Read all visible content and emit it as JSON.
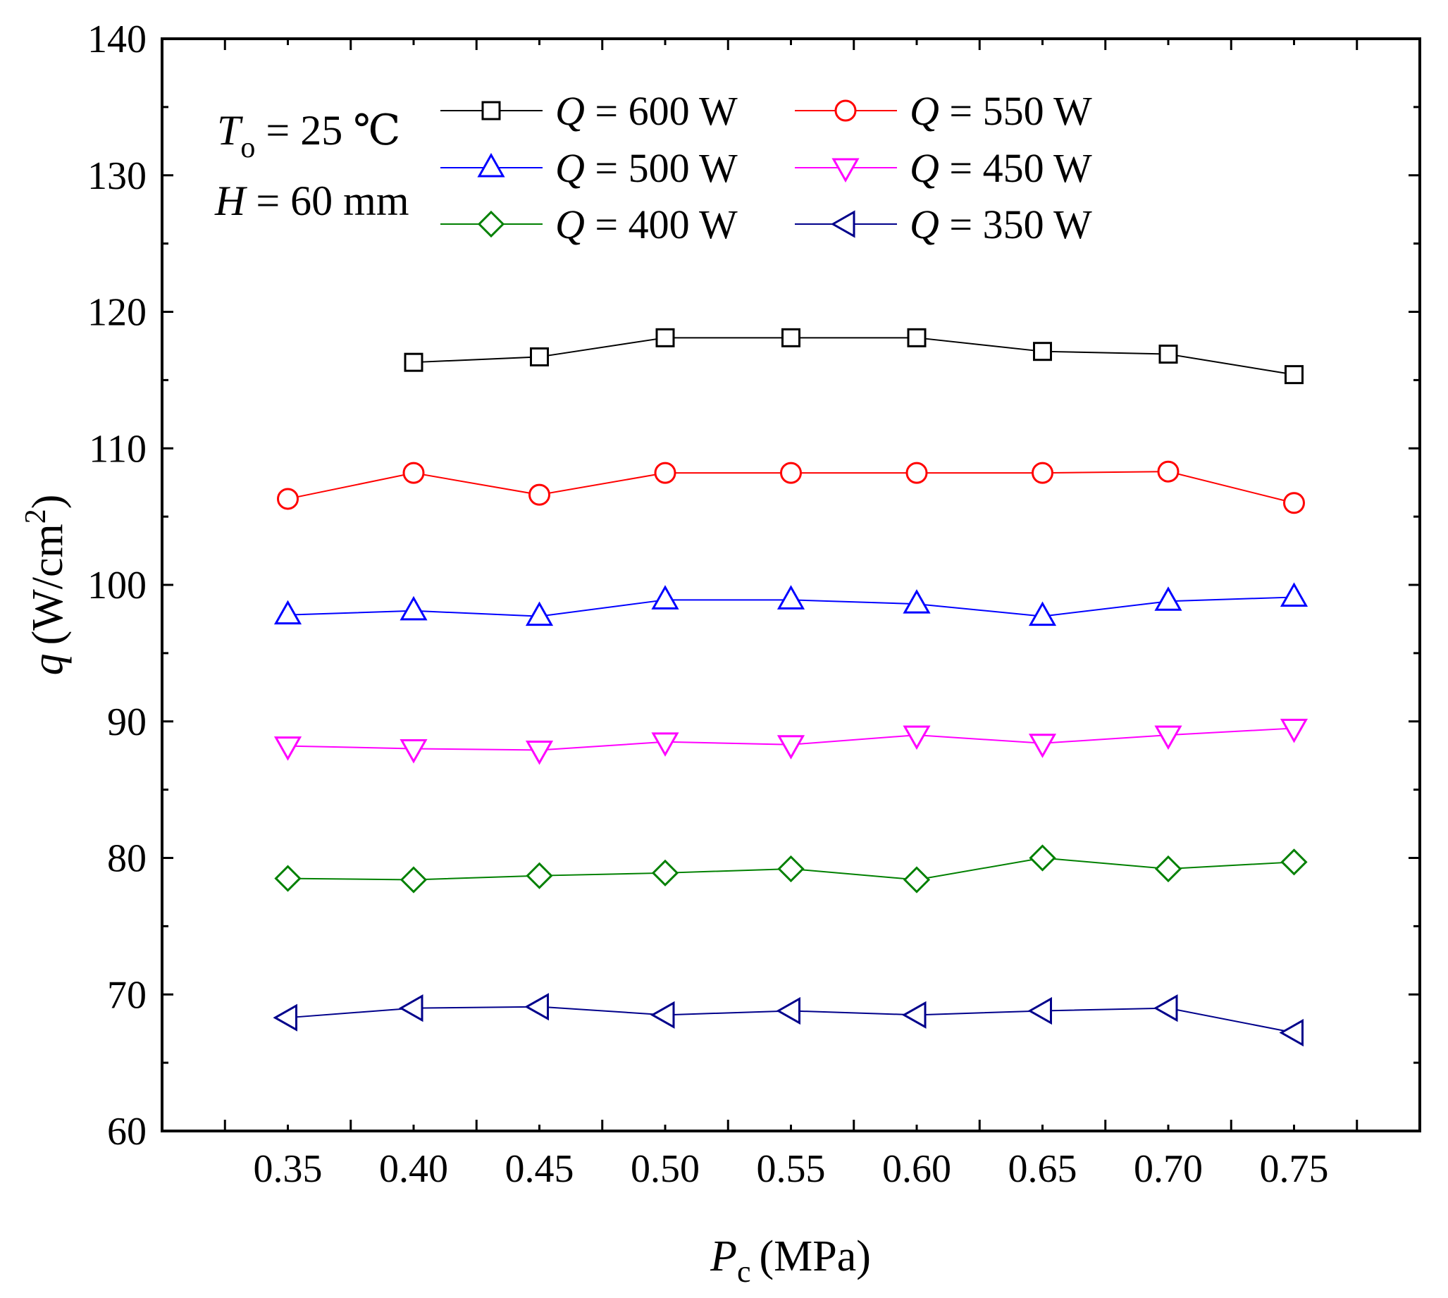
{
  "chart_data": {
    "type": "line",
    "title": "",
    "xlabel": {
      "symbol": "P",
      "subscript": "c",
      "unit": "(MPa)"
    },
    "ylabel": {
      "symbol": "q",
      "unit_prefix": "(W/cm",
      "superscript": "2",
      "unit_suffix": ")"
    },
    "xlim": [
      0.3,
      0.8
    ],
    "ylim": [
      60,
      140
    ],
    "xticks": [
      0.35,
      0.4,
      0.45,
      0.5,
      0.55,
      0.6,
      0.65,
      0.7,
      0.75
    ],
    "xtick_labels": [
      "0.35",
      "0.40",
      "0.45",
      "0.50",
      "0.55",
      "0.60",
      "0.65",
      "0.70",
      "0.75"
    ],
    "yticks": [
      60,
      70,
      80,
      90,
      100,
      110,
      120,
      130,
      140
    ],
    "ytick_labels": [
      "60",
      "70",
      "80",
      "90",
      "100",
      "110",
      "120",
      "130",
      "140"
    ],
    "grid": false,
    "legend_position": "top",
    "annotations": [
      {
        "symbol": "T",
        "subscript": "o",
        "text": " =  25 ℃"
      },
      {
        "symbol": "H",
        "text": " = 60 mm"
      }
    ],
    "series": [
      {
        "name": "Q = 600 W",
        "label_symbol": "Q",
        "label_text": " = 600 W",
        "color": "#000000",
        "marker": "square",
        "x": [
          0.4,
          0.45,
          0.5,
          0.55,
          0.6,
          0.65,
          0.7,
          0.75
        ],
        "values": [
          116.3,
          116.7,
          118.1,
          118.1,
          118.1,
          117.1,
          116.9,
          115.4
        ]
      },
      {
        "name": "Q = 550 W",
        "label_symbol": "Q",
        "label_text": " = 550 W",
        "color": "#ff0000",
        "marker": "circle",
        "x": [
          0.35,
          0.4,
          0.45,
          0.5,
          0.55,
          0.6,
          0.65,
          0.7,
          0.75
        ],
        "values": [
          106.3,
          108.2,
          106.6,
          108.2,
          108.2,
          108.2,
          108.2,
          108.3,
          106.0
        ]
      },
      {
        "name": "Q = 500 W",
        "label_symbol": "Q",
        "label_text": " = 500 W",
        "color": "#0000ff",
        "marker": "triangle-up",
        "x": [
          0.35,
          0.4,
          0.45,
          0.5,
          0.55,
          0.6,
          0.65,
          0.7,
          0.75
        ],
        "values": [
          97.8,
          98.1,
          97.7,
          98.9,
          98.9,
          98.6,
          97.7,
          98.8,
          99.1
        ]
      },
      {
        "name": "Q = 450 W",
        "label_symbol": "Q",
        "label_text": " = 450 W",
        "color": "#ff00ff",
        "marker": "triangle-down",
        "x": [
          0.35,
          0.4,
          0.45,
          0.5,
          0.55,
          0.6,
          0.65,
          0.7,
          0.75
        ],
        "values": [
          88.2,
          88.0,
          87.9,
          88.5,
          88.3,
          89.0,
          88.4,
          89.0,
          89.5
        ]
      },
      {
        "name": "Q = 400 W",
        "label_symbol": "Q",
        "label_text": " = 400 W",
        "color": "#008000",
        "marker": "diamond",
        "x": [
          0.35,
          0.4,
          0.45,
          0.5,
          0.55,
          0.6,
          0.65,
          0.7,
          0.75
        ],
        "values": [
          78.5,
          78.4,
          78.7,
          78.9,
          79.2,
          78.4,
          80.0,
          79.2,
          79.7
        ]
      },
      {
        "name": "Q = 350 W",
        "label_symbol": "Q",
        "label_text": " = 350 W",
        "color": "#00008b",
        "marker": "triangle-left",
        "x": [
          0.35,
          0.4,
          0.45,
          0.5,
          0.55,
          0.6,
          0.65,
          0.7,
          0.75
        ],
        "values": [
          68.3,
          69.0,
          69.1,
          68.5,
          68.8,
          68.5,
          68.8,
          69.0,
          67.2
        ]
      }
    ]
  }
}
